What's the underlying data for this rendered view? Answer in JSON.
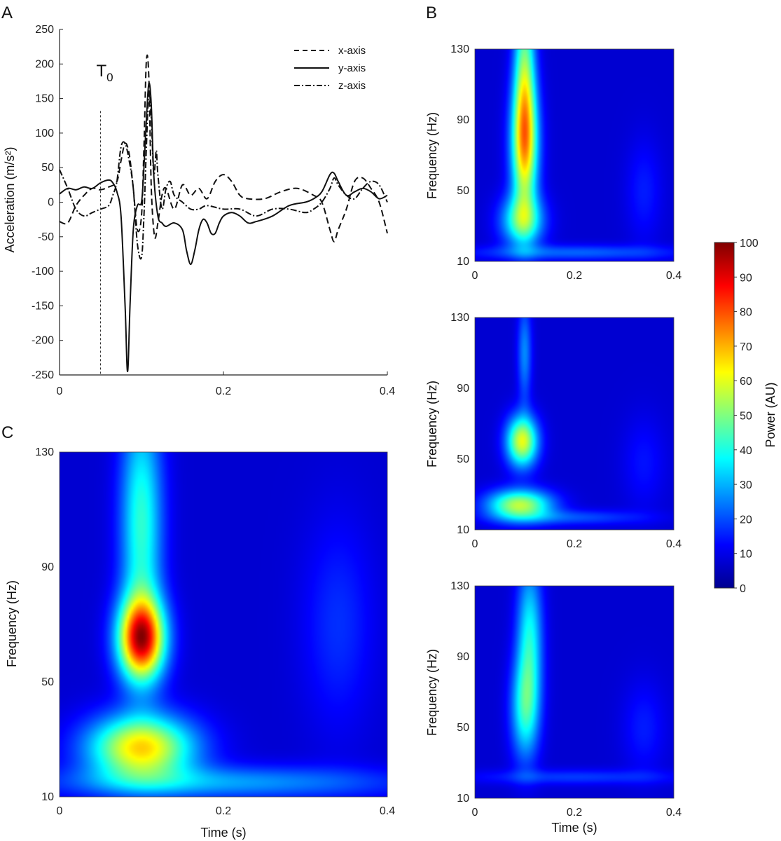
{
  "chart_data": [
    {
      "panel": "A",
      "type": "line",
      "ylabel": "Acceleration (m/s²)",
      "xlim": [
        0,
        0.4
      ],
      "ylim": [
        -250,
        250
      ],
      "xticks": [
        "0",
        "0.2",
        "0.4"
      ],
      "yticks": [
        "250",
        "200",
        "150",
        "100",
        "50",
        "0",
        "-50",
        "-100",
        "-150",
        "-200",
        "-250"
      ],
      "annotation": {
        "text": "T",
        "subscript": "0",
        "x": 0.05
      },
      "series": [
        {
          "name": "x-axis",
          "style": "dashed",
          "points": [
            [
              0,
              -28
            ],
            [
              0.01,
              -30
            ],
            [
              0.02,
              -5
            ],
            [
              0.03,
              10
            ],
            [
              0.04,
              20
            ],
            [
              0.05,
              18
            ],
            [
              0.06,
              22
            ],
            [
              0.07,
              30
            ],
            [
              0.075,
              60
            ],
            [
              0.08,
              85
            ],
            [
              0.085,
              70
            ],
            [
              0.09,
              20
            ],
            [
              0.095,
              -40
            ],
            [
              0.1,
              -20
            ],
            [
              0.103,
              80
            ],
            [
              0.106,
              205
            ],
            [
              0.109,
              180
            ],
            [
              0.112,
              20
            ],
            [
              0.116,
              -50
            ],
            [
              0.12,
              -30
            ],
            [
              0.125,
              10
            ],
            [
              0.13,
              20
            ],
            [
              0.14,
              -10
            ],
            [
              0.15,
              25
            ],
            [
              0.16,
              10
            ],
            [
              0.17,
              20
            ],
            [
              0.18,
              5
            ],
            [
              0.19,
              30
            ],
            [
              0.2,
              40
            ],
            [
              0.21,
              30
            ],
            [
              0.22,
              10
            ],
            [
              0.23,
              5
            ],
            [
              0.25,
              5
            ],
            [
              0.27,
              15
            ],
            [
              0.29,
              20
            ],
            [
              0.31,
              10
            ],
            [
              0.32,
              0
            ],
            [
              0.33,
              -40
            ],
            [
              0.335,
              -57
            ],
            [
              0.34,
              -40
            ],
            [
              0.35,
              -10
            ],
            [
              0.36,
              30
            ],
            [
              0.37,
              35
            ],
            [
              0.38,
              20
            ],
            [
              0.39,
              0
            ],
            [
              0.4,
              -45
            ]
          ]
        },
        {
          "name": "y-axis",
          "style": "solid",
          "points": [
            [
              0,
              12
            ],
            [
              0.01,
              20
            ],
            [
              0.02,
              18
            ],
            [
              0.03,
              22
            ],
            [
              0.04,
              20
            ],
            [
              0.05,
              28
            ],
            [
              0.06,
              32
            ],
            [
              0.065,
              28
            ],
            [
              0.07,
              15
            ],
            [
              0.075,
              -20
            ],
            [
              0.08,
              -150
            ],
            [
              0.083,
              -245
            ],
            [
              0.086,
              -150
            ],
            [
              0.09,
              -40
            ],
            [
              0.095,
              -5
            ],
            [
              0.1,
              0
            ],
            [
              0.103,
              50
            ],
            [
              0.106,
              120
            ],
            [
              0.109,
              172
            ],
            [
              0.112,
              140
            ],
            [
              0.115,
              40
            ],
            [
              0.12,
              -20
            ],
            [
              0.125,
              -30
            ],
            [
              0.13,
              -35
            ],
            [
              0.14,
              -30
            ],
            [
              0.15,
              -40
            ],
            [
              0.155,
              -70
            ],
            [
              0.16,
              -90
            ],
            [
              0.165,
              -70
            ],
            [
              0.17,
              -40
            ],
            [
              0.175,
              -25
            ],
            [
              0.18,
              -30
            ],
            [
              0.185,
              -45
            ],
            [
              0.19,
              -45
            ],
            [
              0.195,
              -30
            ],
            [
              0.2,
              -20
            ],
            [
              0.21,
              -15
            ],
            [
              0.22,
              -20
            ],
            [
              0.23,
              -30
            ],
            [
              0.24,
              -28
            ],
            [
              0.26,
              -20
            ],
            [
              0.28,
              -5
            ],
            [
              0.3,
              0
            ],
            [
              0.31,
              5
            ],
            [
              0.32,
              15
            ],
            [
              0.33,
              40
            ],
            [
              0.335,
              42
            ],
            [
              0.34,
              30
            ],
            [
              0.35,
              10
            ],
            [
              0.36,
              15
            ],
            [
              0.37,
              20
            ],
            [
              0.38,
              15
            ],
            [
              0.39,
              5
            ],
            [
              0.4,
              10
            ]
          ]
        },
        {
          "name": "z-axis",
          "style": "dashdot",
          "points": [
            [
              0,
              47
            ],
            [
              0.01,
              20
            ],
            [
              0.02,
              -10
            ],
            [
              0.03,
              -20
            ],
            [
              0.04,
              -15
            ],
            [
              0.05,
              -10
            ],
            [
              0.06,
              -5
            ],
            [
              0.065,
              10
            ],
            [
              0.07,
              30
            ],
            [
              0.075,
              80
            ],
            [
              0.08,
              85
            ],
            [
              0.085,
              60
            ],
            [
              0.09,
              20
            ],
            [
              0.095,
              -60
            ],
            [
              0.1,
              -80
            ],
            [
              0.103,
              -20
            ],
            [
              0.106,
              80
            ],
            [
              0.109,
              160
            ],
            [
              0.112,
              120
            ],
            [
              0.115,
              40
            ],
            [
              0.118,
              75
            ],
            [
              0.12,
              40
            ],
            [
              0.125,
              -10
            ],
            [
              0.13,
              20
            ],
            [
              0.135,
              30
            ],
            [
              0.14,
              10
            ],
            [
              0.15,
              0
            ],
            [
              0.16,
              -10
            ],
            [
              0.17,
              -10
            ],
            [
              0.18,
              -5
            ],
            [
              0.2,
              -10
            ],
            [
              0.22,
              -10
            ],
            [
              0.24,
              -20
            ],
            [
              0.26,
              -10
            ],
            [
              0.28,
              -10
            ],
            [
              0.3,
              -15
            ],
            [
              0.31,
              -10
            ],
            [
              0.32,
              0
            ],
            [
              0.33,
              20
            ],
            [
              0.335,
              35
            ],
            [
              0.34,
              25
            ],
            [
              0.35,
              10
            ],
            [
              0.36,
              5
            ],
            [
              0.37,
              20
            ],
            [
              0.38,
              30
            ],
            [
              0.39,
              25
            ],
            [
              0.4,
              0
            ]
          ]
        }
      ],
      "legend": [
        "x-axis",
        "y-axis",
        "z-axis"
      ]
    },
    {
      "panel": "B",
      "type": "heatmap",
      "subplots": 3,
      "ylabel": "Frequency (Hz)",
      "xlabel": "Time (s)",
      "xlim": [
        0,
        0.4
      ],
      "ylim": [
        10,
        130
      ],
      "xticks": [
        "0",
        "0.2",
        "0.4"
      ],
      "yticks": [
        "130",
        "90",
        "50",
        "10"
      ],
      "peaks": [
        [
          {
            "t": 0.1,
            "f": 110,
            "st": 0.015,
            "sf": 40,
            "p": 40
          },
          {
            "t": 0.1,
            "f": 75,
            "st": 0.02,
            "sf": 25,
            "p": 42
          },
          {
            "t": 0.095,
            "f": 33,
            "st": 0.03,
            "sf": 10,
            "p": 35
          },
          {
            "t": 0.2,
            "f": 15,
            "st": 0.15,
            "sf": 3,
            "p": 14
          },
          {
            "t": 0.34,
            "f": 50,
            "st": 0.025,
            "sf": 20,
            "p": 7
          }
        ],
        [
          {
            "t": 0.095,
            "f": 60,
            "st": 0.022,
            "sf": 10,
            "p": 52
          },
          {
            "t": 0.09,
            "f": 24,
            "st": 0.045,
            "sf": 6,
            "p": 48
          },
          {
            "t": 0.1,
            "f": 110,
            "st": 0.01,
            "sf": 20,
            "p": 18
          },
          {
            "t": 0.2,
            "f": 17,
            "st": 0.1,
            "sf": 3,
            "p": 12
          },
          {
            "t": 0.34,
            "f": 48,
            "st": 0.03,
            "sf": 18,
            "p": 6
          }
        ],
        [
          {
            "t": 0.11,
            "f": 100,
            "st": 0.018,
            "sf": 30,
            "p": 30
          },
          {
            "t": 0.1,
            "f": 60,
            "st": 0.02,
            "sf": 20,
            "p": 28
          },
          {
            "t": 0.2,
            "f": 22,
            "st": 0.15,
            "sf": 3,
            "p": 10
          },
          {
            "t": 0.34,
            "f": 50,
            "st": 0.03,
            "sf": 18,
            "p": 7
          }
        ]
      ]
    },
    {
      "panel": "C",
      "type": "heatmap",
      "xlabel": "Time (s)",
      "ylabel": "Frequency (Hz)",
      "xlim": [
        0,
        0.4
      ],
      "ylim": [
        10,
        130
      ],
      "xticks": [
        "0",
        "0.2",
        "0.4"
      ],
      "yticks": [
        "130",
        "90",
        "50",
        "10"
      ],
      "peaks": [
        {
          "t": 0.1,
          "f": 65,
          "st": 0.02,
          "sf": 10,
          "p": 78
        },
        {
          "t": 0.1,
          "f": 27,
          "st": 0.045,
          "sf": 8,
          "p": 58
        },
        {
          "t": 0.1,
          "f": 105,
          "st": 0.018,
          "sf": 30,
          "p": 34
        },
        {
          "t": 0.2,
          "f": 15,
          "st": 0.15,
          "sf": 4,
          "p": 20
        },
        {
          "t": 0.34,
          "f": 70,
          "st": 0.03,
          "sf": 25,
          "p": 9
        }
      ]
    },
    {
      "type": "colorbar",
      "label": "Power (AU)",
      "range": [
        0,
        100
      ],
      "ticks": [
        "100",
        "90",
        "80",
        "70",
        "60",
        "50",
        "40",
        "30",
        "20",
        "10",
        "0"
      ]
    }
  ],
  "panels": {
    "a": "A",
    "b": "B",
    "c": "C"
  }
}
